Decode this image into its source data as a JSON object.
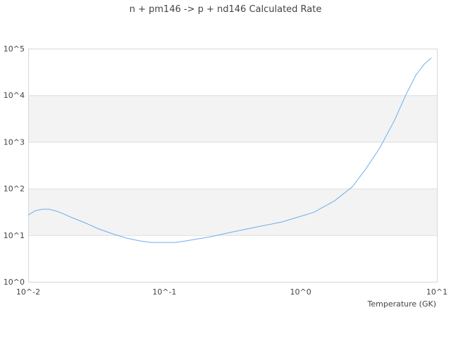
{
  "chart_data": {
    "type": "line",
    "title": "n + pm146 -> p + nd146 Calculated Rate",
    "xlabel": "Temperature (GK)",
    "ylabel": "",
    "x_scale": "log",
    "y_scale": "log",
    "xlim": [
      0.01,
      10
    ],
    "ylim": [
      1,
      100000
    ],
    "x_ticks": [
      "10^-2",
      "10^-1",
      "10^0",
      "10^1"
    ],
    "y_ticks": [
      "10^0",
      "10^1",
      "10^2",
      "10^3",
      "10^4",
      "10^5"
    ],
    "grid": true,
    "alternating_bands": true,
    "line_color": "#6aaef0",
    "band_color": "#f3f3f3",
    "series": [
      {
        "x": [
          0.01,
          0.0113,
          0.0127,
          0.0143,
          0.016,
          0.018,
          0.0204,
          0.026,
          0.033,
          0.042,
          0.053,
          0.067,
          0.08,
          0.1,
          0.122,
          0.155,
          0.22,
          0.32,
          0.45,
          0.73,
          1.0,
          1.25,
          1.78,
          2.4,
          3.0,
          3.8,
          4.9,
          5.9,
          7.0,
          8.1,
          9.1
        ],
        "y": [
          27,
          33.6,
          36,
          36,
          33,
          29,
          24.5,
          18.6,
          13.6,
          10.6,
          8.6,
          7.5,
          7.0,
          7.0,
          7.0,
          7.8,
          9.3,
          11.8,
          14.5,
          19.2,
          25.4,
          31,
          55,
          110,
          261,
          740,
          2960,
          10000,
          27000,
          47000,
          63000
        ]
      }
    ]
  }
}
